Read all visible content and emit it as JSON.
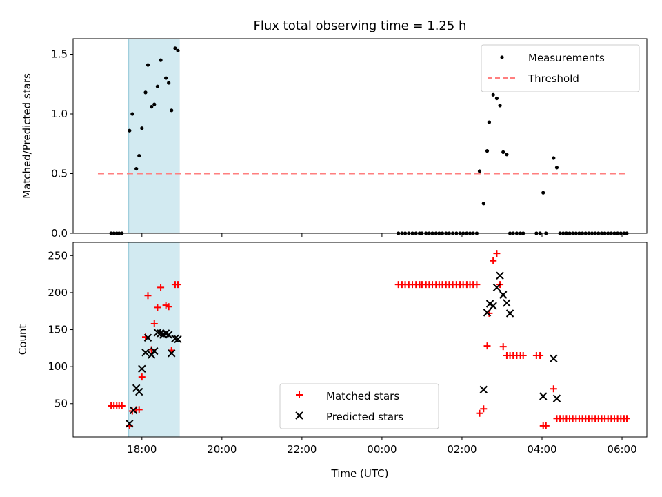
{
  "chart_data": [
    {
      "type": "scatter",
      "title": "Flux total observing time = 1.25 h",
      "xlabel": "",
      "ylabel": "Matched/Predicted stars",
      "ylim": [
        0,
        1.63
      ],
      "yticks": [
        0.0,
        0.5,
        1.0,
        1.5
      ],
      "ytick_labels": [
        "0.0",
        "0.5",
        "1.0",
        "1.5"
      ],
      "highlight_span_hours": [
        17.67,
        18.93
      ],
      "legend_position": "upper-right",
      "series": [
        {
          "name": "Measurements",
          "marker": "dot",
          "color": "#000000",
          "x": [
            17.23,
            17.3,
            17.37,
            17.43,
            17.5,
            17.69,
            17.76,
            17.86,
            17.93,
            18.0,
            18.09,
            18.15,
            18.24,
            18.31,
            18.39,
            18.47,
            18.6,
            18.67,
            18.74,
            18.83,
            18.9,
            0.41,
            0.5,
            0.58,
            0.67,
            0.76,
            0.85,
            0.94,
            1.0,
            1.1,
            1.18,
            1.26,
            1.35,
            1.43,
            1.51,
            1.6,
            1.68,
            1.77,
            1.86,
            1.95,
            2.03,
            2.12,
            2.2,
            2.28,
            2.37,
            2.44,
            2.54,
            2.63,
            2.68,
            2.78,
            2.87,
            2.95,
            3.03,
            3.12,
            3.2,
            3.28,
            3.37,
            3.46,
            3.53,
            3.86,
            3.95,
            4.03,
            4.1,
            4.29,
            4.37,
            4.45,
            4.53,
            4.61,
            4.69,
            4.77,
            4.85,
            4.93,
            5.01,
            5.09,
            5.17,
            5.25,
            5.33,
            5.41,
            5.49,
            5.57,
            5.65,
            5.73,
            5.81,
            5.89,
            5.97,
            6.05,
            6.12
          ],
          "y": [
            0,
            0,
            0,
            0,
            0,
            0.86,
            1.0,
            0.54,
            0.65,
            0.88,
            1.18,
            1.41,
            1.06,
            1.08,
            1.23,
            1.45,
            1.3,
            1.26,
            1.03,
            1.55,
            1.53,
            0,
            0,
            0,
            0,
            0,
            0,
            0,
            0,
            0,
            0,
            0,
            0,
            0,
            0,
            0,
            0,
            0,
            0,
            0,
            0,
            0,
            0,
            0,
            0,
            0.52,
            0.25,
            0.69,
            0.93,
            1.16,
            1.13,
            1.07,
            0.68,
            0.66,
            0,
            0,
            0,
            0,
            0,
            0,
            0,
            0.34,
            0,
            0.63,
            0.55,
            0,
            0,
            0,
            0,
            0,
            0,
            0,
            0,
            0,
            0,
            0,
            0,
            0,
            0,
            0,
            0,
            0,
            0,
            0,
            0,
            0,
            0
          ]
        },
        {
          "name": "Threshold",
          "marker": "dashed-line",
          "color": "#ff7f7f",
          "x": [
            16.9,
            6.15
          ],
          "y": [
            0.5,
            0.5
          ]
        }
      ]
    },
    {
      "type": "scatter",
      "title": "",
      "xlabel": "Time (UTC)",
      "ylabel": "Count",
      "ylim": [
        5,
        268
      ],
      "yticks": [
        50,
        100,
        150,
        200,
        250
      ],
      "ytick_labels": [
        "50",
        "100",
        "150",
        "200",
        "250"
      ],
      "xticks_hours": [
        18,
        20,
        22,
        24,
        26,
        28,
        30
      ],
      "xtick_labels": [
        "18:00",
        "20:00",
        "22:00",
        "00:00",
        "02:00",
        "04:00",
        "06:00"
      ],
      "highlight_span_hours": [
        17.67,
        18.93
      ],
      "legend_position": "lower-center",
      "series": [
        {
          "name": "Matched stars",
          "marker": "plus",
          "color": "#ff0000",
          "x": [
            17.23,
            17.3,
            17.37,
            17.43,
            17.5,
            17.69,
            17.76,
            17.86,
            17.93,
            18.0,
            18.09,
            18.15,
            18.24,
            18.31,
            18.39,
            18.47,
            18.6,
            18.67,
            18.74,
            18.83,
            18.9,
            0.41,
            0.5,
            0.58,
            0.67,
            0.76,
            0.85,
            0.94,
            1.0,
            1.1,
            1.18,
            1.26,
            1.35,
            1.43,
            1.51,
            1.6,
            1.68,
            1.77,
            1.86,
            1.95,
            2.03,
            2.12,
            2.2,
            2.28,
            2.37,
            2.44,
            2.54,
            2.63,
            2.68,
            2.78,
            2.87,
            2.95,
            3.03,
            3.12,
            3.2,
            3.28,
            3.37,
            3.46,
            3.53,
            3.86,
            3.95,
            4.03,
            4.1,
            4.29,
            4.37,
            4.45,
            4.53,
            4.61,
            4.69,
            4.77,
            4.85,
            4.93,
            5.01,
            5.09,
            5.17,
            5.25,
            5.33,
            5.41,
            5.49,
            5.57,
            5.65,
            5.73,
            5.81,
            5.89,
            5.97,
            6.05,
            6.12
          ],
          "y": [
            47,
            47,
            47,
            47,
            47,
            20,
            40,
            42,
            42,
            86,
            140,
            196,
            123,
            158,
            180,
            207,
            183,
            181,
            122,
            211,
            211,
            211,
            211,
            211,
            211,
            211,
            211,
            211,
            211,
            211,
            211,
            211,
            211,
            211,
            211,
            211,
            211,
            211,
            211,
            211,
            211,
            211,
            211,
            211,
            211,
            37,
            43,
            128,
            172,
            243,
            253,
            211,
            127,
            115,
            115,
            115,
            115,
            115,
            115,
            115,
            115,
            20,
            20,
            70,
            30,
            30,
            30,
            30,
            30,
            30,
            30,
            30,
            30,
            30,
            30,
            30,
            30,
            30,
            30,
            30,
            30,
            30,
            30,
            30,
            30,
            30,
            30
          ]
        },
        {
          "name": "Predicted stars",
          "marker": "x",
          "color": "#000000",
          "x": [
            17.69,
            17.79,
            17.86,
            17.93,
            18.0,
            18.09,
            18.15,
            18.24,
            18.31,
            18.39,
            18.47,
            18.53,
            18.6,
            18.67,
            18.74,
            18.83,
            18.9,
            2.54,
            2.63,
            2.7,
            2.78,
            2.87,
            2.95,
            3.03,
            3.12,
            3.2,
            4.03,
            4.29,
            4.37
          ],
          "y": [
            23,
            41,
            71,
            66,
            97,
            119,
            139,
            116,
            121,
            146,
            145,
            143,
            145,
            143,
            118,
            138,
            137,
            69,
            173,
            185,
            182,
            207,
            223,
            197,
            186,
            172,
            60,
            111,
            57
          ]
        }
      ]
    }
  ]
}
